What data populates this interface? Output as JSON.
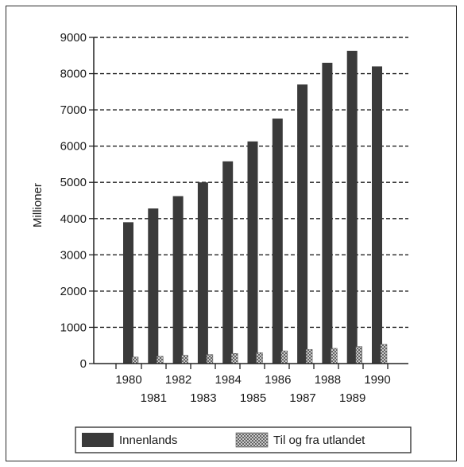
{
  "chart_data": {
    "type": "bar",
    "ylabel": "Millioner",
    "xlabel": "",
    "ylim": [
      0,
      9000
    ],
    "yticks": [
      0,
      1000,
      2000,
      3000,
      4000,
      5000,
      6000,
      7000,
      8000,
      9000
    ],
    "grid": "horizontal dashed",
    "categories": [
      "1980",
      "1981",
      "1982",
      "1983",
      "1984",
      "1985",
      "1986",
      "1987",
      "1988",
      "1989",
      "1990"
    ],
    "series": [
      {
        "name": "Innenlands",
        "color": "#3a3a3a",
        "values": [
          3900,
          4280,
          4620,
          5000,
          5580,
          6130,
          6760,
          7700,
          8300,
          8630,
          8200
        ]
      },
      {
        "name": "Til og fra utlandet",
        "color": "#c8c8c8",
        "pattern": "crosshatch",
        "values": [
          180,
          200,
          230,
          250,
          280,
          300,
          350,
          390,
          420,
          470,
          530
        ]
      }
    ],
    "legend_position": "bottom"
  }
}
